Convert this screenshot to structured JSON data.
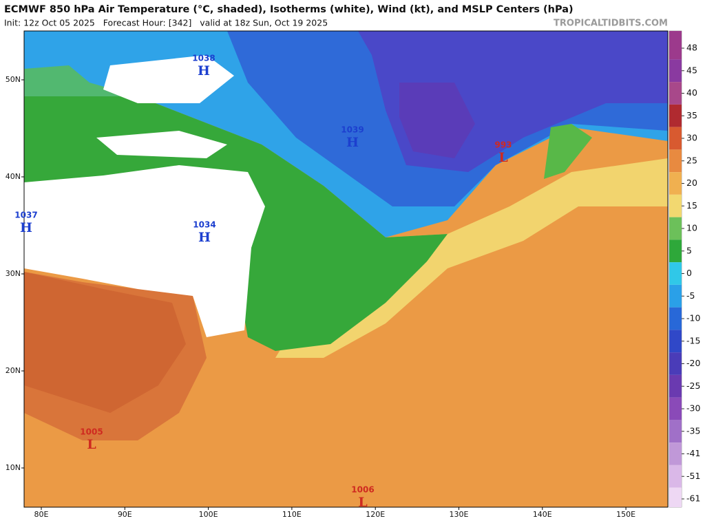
{
  "header": {
    "title": "ECMWF 850 hPa Air Temperature (°C, shaded), Isotherms (white), Wind (kt), and MSLP Centers (hPa)",
    "subtitle": "Init: 12z Oct 05 2025   Forecast Hour: [342]   valid at 18z Sun, Oct 19 2025",
    "site": "TROPICALTIDBITS.COM"
  },
  "map": {
    "lon_labels": [
      "80E",
      "90E",
      "100E",
      "110E",
      "120E",
      "130E",
      "140E",
      "150E"
    ],
    "lat_labels": [
      "50N",
      "40N",
      "30N",
      "20N",
      "10N"
    ]
  },
  "pressure_centers": [
    {
      "value": "1038",
      "type": "H"
    },
    {
      "value": "1039",
      "type": "H"
    },
    {
      "value": "993",
      "type": "L"
    },
    {
      "value": "1037",
      "type": "H"
    },
    {
      "value": "1034",
      "type": "H"
    },
    {
      "value": "1005",
      "type": "L"
    },
    {
      "value": "1006",
      "type": "L"
    }
  ],
  "colorbar": {
    "ticks": [
      48,
      45,
      40,
      35,
      30,
      25,
      20,
      15,
      10,
      5,
      0,
      -5,
      -10,
      -15,
      -20,
      -25,
      -30,
      -35,
      -41,
      -51,
      -61
    ]
  }
}
